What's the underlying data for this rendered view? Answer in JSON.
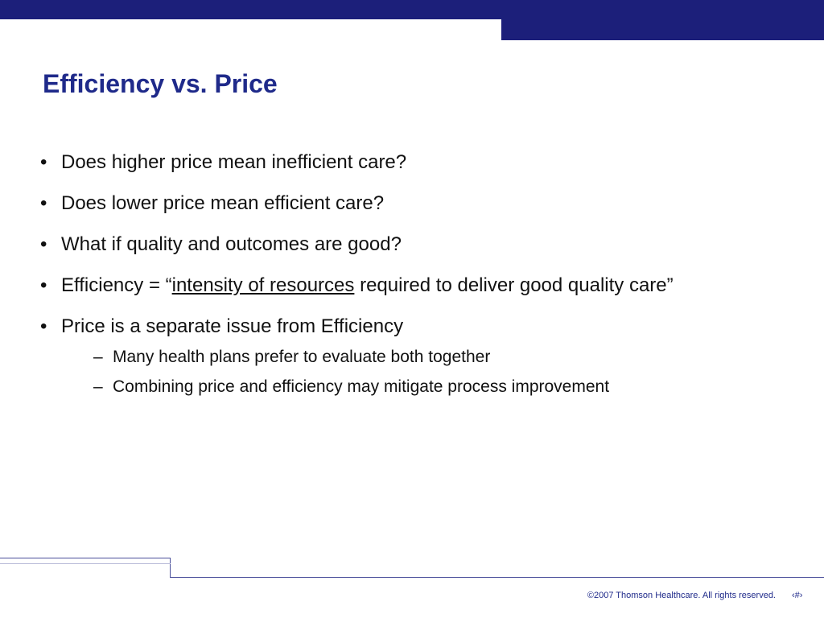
{
  "slide": {
    "title": "Efficiency vs. Price",
    "bullets": [
      {
        "text": "Does higher price mean inefficient care?"
      },
      {
        "text": "Does lower price mean efficient care?"
      },
      {
        "text": "What if quality and outcomes are good?"
      },
      {
        "prefix": "Efficiency = “",
        "underlined": "intensity of resources",
        "suffix": " required to deliver good quality care”"
      },
      {
        "text": "Price is a separate issue from Efficiency"
      }
    ],
    "sub_bullets": [
      {
        "text": "Many health plans prefer to evaluate both together"
      },
      {
        "text": "Combining price and efficiency may mitigate process improvement"
      }
    ],
    "bullet_glyph": "•",
    "sub_bullet_glyph": "–"
  },
  "footer": {
    "copyright": "©2007 Thomson Healthcare. All rights reserved.",
    "slide_number": "‹#›"
  },
  "colors": {
    "accent_band": "#1c1f7a",
    "title": "#1f2a8a",
    "body_text": "#111111"
  }
}
